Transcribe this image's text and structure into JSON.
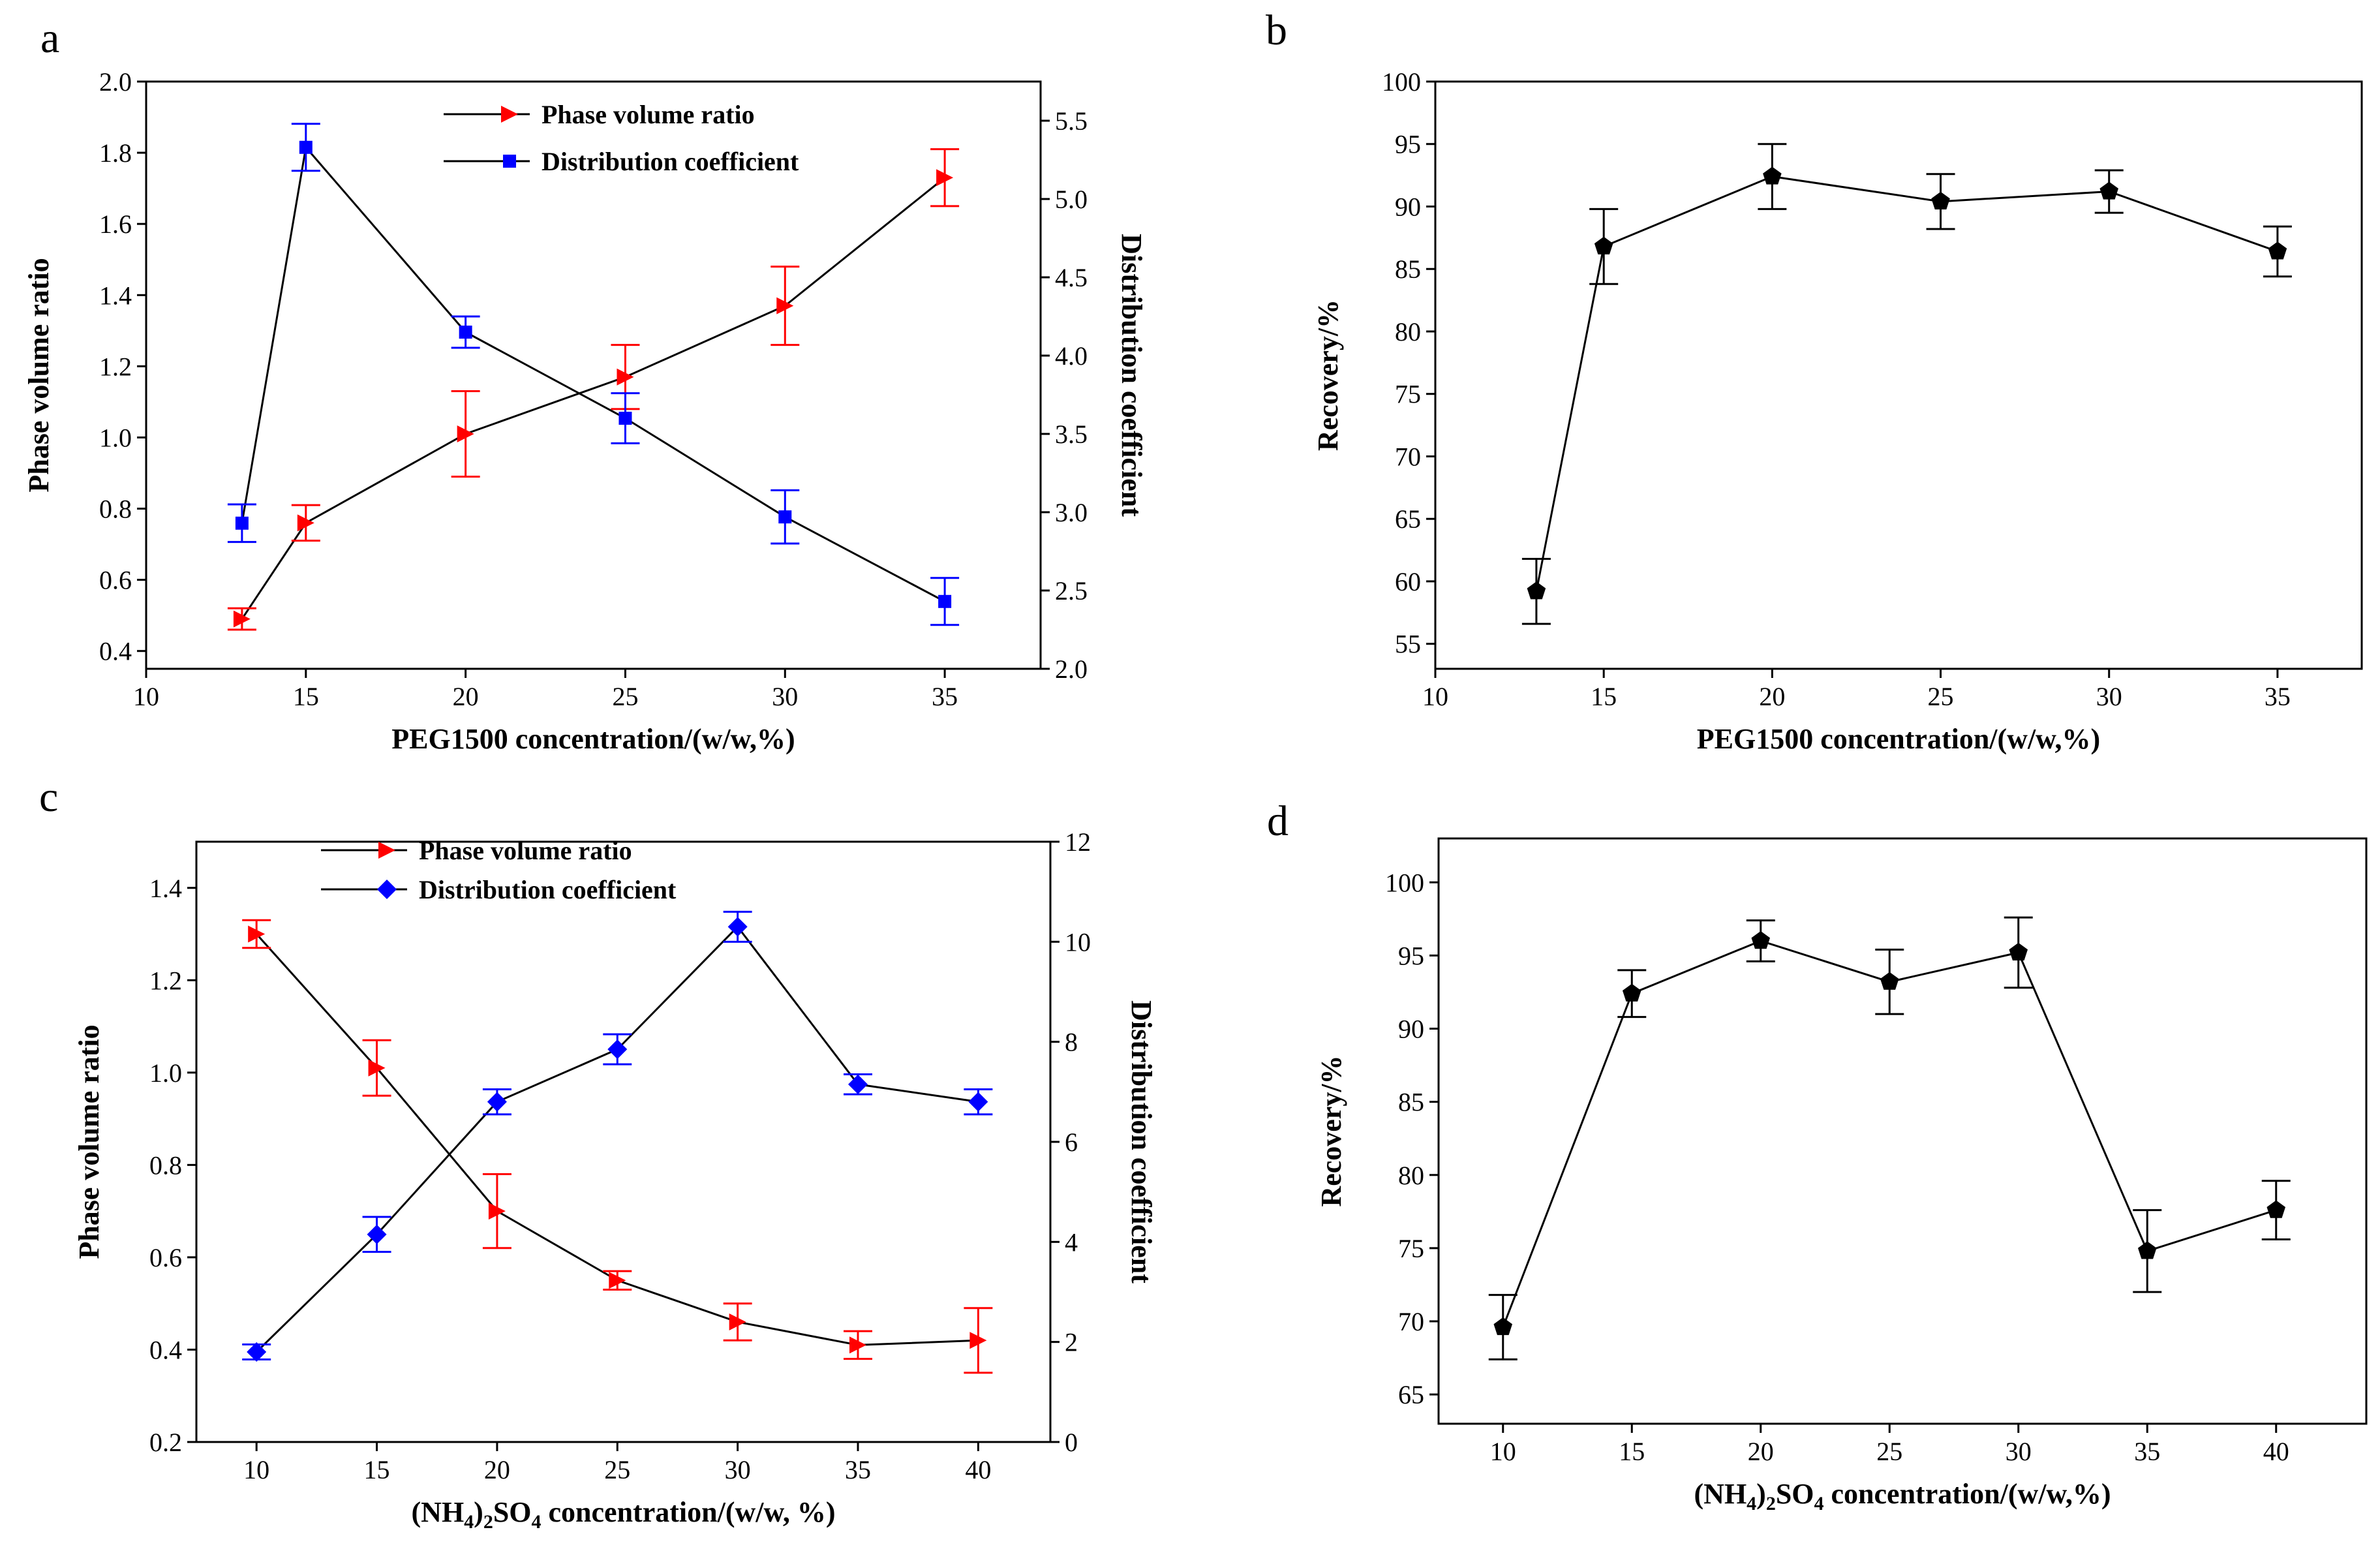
{
  "chart_data": [
    {
      "panel": "a",
      "type": "line",
      "xlabel": "PEG1500 concentration/(w/w,%)",
      "ylabel": "Phase volume ratio",
      "y2label": "Distribution coefficient",
      "xlim": [
        10,
        38
      ],
      "xticks": [
        "10",
        "15",
        "20",
        "25",
        "30",
        "35"
      ],
      "ylim": [
        0.35,
        2.0
      ],
      "yticks": [
        "0.4",
        "0.6",
        "0.8",
        "1.0",
        "1.2",
        "1.4",
        "1.6",
        "1.8",
        "2.0"
      ],
      "y2lim": [
        2.0,
        5.75
      ],
      "y2ticks": [
        "2.0",
        "2.5",
        "3.0",
        "3.5",
        "4.0",
        "4.5",
        "5.0",
        "5.5"
      ],
      "legend_position": "top-center",
      "series": [
        {
          "name": "Phase volume ratio",
          "axis": "left",
          "color": "#ff0000",
          "marker": "triangle-right",
          "x": [
            13,
            15,
            20,
            25,
            30,
            35
          ],
          "values": [
            0.49,
            0.76,
            1.01,
            1.17,
            1.37,
            1.73
          ],
          "errors": [
            0.03,
            0.05,
            0.12,
            0.09,
            0.11,
            0.08
          ]
        },
        {
          "name": "Distribution coefficient",
          "axis": "right",
          "color": "#0000ff",
          "marker": "square",
          "x": [
            13,
            15,
            20,
            25,
            30,
            35
          ],
          "values": [
            2.93,
            5.33,
            4.15,
            3.6,
            2.97,
            2.43
          ],
          "errors": [
            0.12,
            0.15,
            0.1,
            0.16,
            0.17,
            0.15
          ]
        }
      ]
    },
    {
      "panel": "b",
      "type": "line",
      "xlabel": "PEG1500 concentration/(w/w,%)",
      "ylabel": "Recovery/%",
      "xlim": [
        10,
        37.5
      ],
      "xticks": [
        "10",
        "15",
        "20",
        "25",
        "30",
        "35"
      ],
      "ylim": [
        53,
        100
      ],
      "yticks": [
        "55",
        "60",
        "65",
        "70",
        "75",
        "80",
        "85",
        "90",
        "95",
        "100"
      ],
      "series": [
        {
          "name": "Recovery",
          "color": "#000000",
          "marker": "pentagon",
          "x": [
            13,
            15,
            20,
            25,
            30,
            35
          ],
          "values": [
            59.2,
            86.8,
            92.4,
            90.4,
            91.2,
            86.4
          ],
          "errors": [
            2.6,
            3.0,
            2.6,
            2.2,
            1.7,
            2.0
          ]
        }
      ]
    },
    {
      "panel": "c",
      "type": "line",
      "xlabel_parts": [
        "(NH",
        "4",
        ")",
        "2",
        "SO",
        "4",
        " concentration/(w/w, %)"
      ],
      "ylabel": "Phase volume ratio",
      "y2label": "Distribution coefficient",
      "xlim": [
        7.5,
        43
      ],
      "xticks": [
        "10",
        "15",
        "20",
        "25",
        "30",
        "35",
        "40"
      ],
      "ylim": [
        0.2,
        1.5
      ],
      "yticks": [
        "0.2",
        "0.4",
        "0.6",
        "0.8",
        "1.0",
        "1.2",
        "1.4"
      ],
      "y2lim": [
        0,
        12
      ],
      "y2ticks": [
        "0",
        "2",
        "4",
        "6",
        "8",
        "10",
        "12"
      ],
      "legend_position": "top-left",
      "series": [
        {
          "name": "Phase volume ratio",
          "axis": "left",
          "color": "#ff0000",
          "marker": "triangle-right",
          "x": [
            10,
            15,
            20,
            25,
            30,
            35,
            40
          ],
          "values": [
            1.3,
            1.01,
            0.7,
            0.55,
            0.46,
            0.41,
            0.42
          ],
          "errors": [
            0.03,
            0.06,
            0.08,
            0.02,
            0.04,
            0.03,
            0.07
          ]
        },
        {
          "name": "Distribution coefficient",
          "axis": "right",
          "color": "#0000ff",
          "marker": "diamond",
          "x": [
            10,
            15,
            20,
            25,
            30,
            35,
            40
          ],
          "values": [
            1.8,
            4.15,
            6.8,
            7.85,
            10.3,
            7.15,
            6.8
          ],
          "errors": [
            0.15,
            0.35,
            0.25,
            0.3,
            0.3,
            0.2,
            0.25
          ]
        }
      ]
    },
    {
      "panel": "d",
      "type": "line",
      "xlabel_parts": [
        "(NH",
        "4",
        ")",
        "2",
        "SO",
        "4",
        " concentration/(w/w,%)"
      ],
      "ylabel": "Recovery/%",
      "xlim": [
        7.5,
        43.5
      ],
      "xticks": [
        "10",
        "15",
        "20",
        "25",
        "30",
        "35",
        "40"
      ],
      "ylim": [
        63,
        103
      ],
      "yticks": [
        "65",
        "70",
        "75",
        "80",
        "85",
        "90",
        "95",
        "100"
      ],
      "series": [
        {
          "name": "Recovery",
          "color": "#000000",
          "marker": "pentagon",
          "x": [
            10,
            15,
            20,
            25,
            30,
            35,
            40
          ],
          "values": [
            69.6,
            92.4,
            96.0,
            93.2,
            95.2,
            74.8,
            77.6
          ],
          "errors": [
            2.2,
            1.6,
            1.4,
            2.2,
            2.4,
            2.8,
            2.0
          ]
        }
      ]
    }
  ]
}
